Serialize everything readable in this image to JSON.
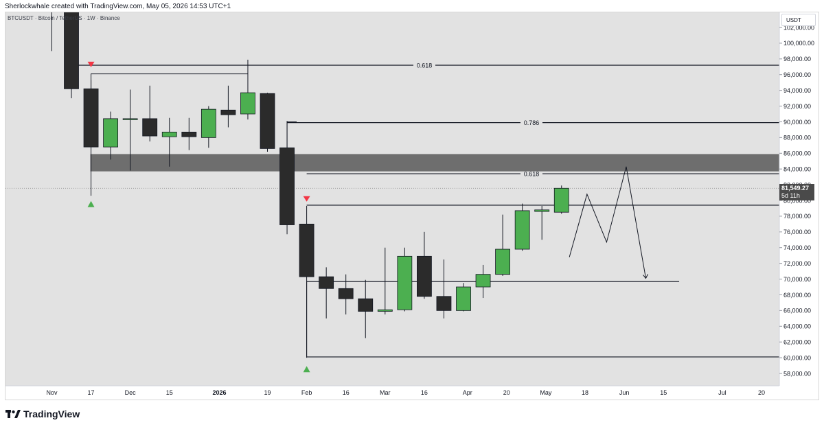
{
  "header": {
    "credit": "Sherlockwhale created with TradingView.com, May 05, 2026 14:53 UTC+1",
    "symbol_line": "BTCUSDT · Bitcoin / TetherUS · 1W · Binance"
  },
  "currency_button": {
    "label": "USDT"
  },
  "price_badge": {
    "price": "81,549.27",
    "countdown": "5d 11h"
  },
  "footer": {
    "brand": "TradingView",
    "logo_icon": "tradingview-logo-icon"
  },
  "colors": {
    "bull": "#4caf50",
    "bear": "#2b2b2b",
    "plot_bg": "#e2e2e2",
    "zone": "#6e6e6e",
    "marker_down": "#f23645",
    "marker_up": "#4caf50"
  },
  "chart_data": {
    "type": "candlestick",
    "ylim": [
      56500,
      103500
    ],
    "y_ticks": [
      58000,
      60000,
      62000,
      64000,
      66000,
      68000,
      70000,
      72000,
      74000,
      76000,
      78000,
      80000,
      82000,
      84000,
      86000,
      88000,
      90000,
      92000,
      94000,
      96000,
      98000,
      100000,
      102000
    ],
    "y_tick_labels": [
      "58,000.00",
      "60,000.00",
      "62,000.00",
      "64,000.00",
      "66,000.00",
      "68,000.00",
      "70,000.00",
      "72,000.00",
      "74,000.00",
      "76,000.00",
      "78,000.00",
      "80,000.00",
      "82,000.00",
      "84,000.00",
      "86,000.00",
      "88,000.00",
      "90,000.00",
      "92,000.00",
      "94,000.00",
      "96,000.00",
      "98,000.00",
      "100,000.00",
      "102,000.00"
    ],
    "x_labels": [
      {
        "label": "Nov",
        "week": -1.0,
        "bold": false
      },
      {
        "label": "17",
        "week": 1,
        "bold": false
      },
      {
        "label": "Dec",
        "week": 3,
        "bold": false
      },
      {
        "label": "15",
        "week": 5,
        "bold": false
      },
      {
        "label": "2026",
        "week": 7.55,
        "bold": true
      },
      {
        "label": "19",
        "week": 10,
        "bold": false
      },
      {
        "label": "Feb",
        "week": 12,
        "bold": false
      },
      {
        "label": "16",
        "week": 14,
        "bold": false
      },
      {
        "label": "Mar",
        "week": 16,
        "bold": false
      },
      {
        "label": "16",
        "week": 18,
        "bold": false
      },
      {
        "label": "Apr",
        "week": 20.2,
        "bold": false
      },
      {
        "label": "20",
        "week": 22.2,
        "bold": false
      },
      {
        "label": "May",
        "week": 24.2,
        "bold": false
      },
      {
        "label": "18",
        "week": 26.2,
        "bold": false
      },
      {
        "label": "Jun",
        "week": 28.2,
        "bold": false
      },
      {
        "label": "15",
        "week": 30.2,
        "bold": false
      },
      {
        "label": "Jul",
        "week": 33.2,
        "bold": false
      },
      {
        "label": "20",
        "week": 35.2,
        "bold": false
      }
    ],
    "candles": [
      {
        "w": -1,
        "o": 104200,
        "h": 104500,
        "l": 99000,
        "c": 104000
      },
      {
        "w": 0,
        "o": 106000,
        "h": 107000,
        "l": 93000,
        "c": 94200
      },
      {
        "w": 1,
        "o": 94200,
        "h": 95300,
        "l": 80600,
        "c": 86800
      },
      {
        "w": 2,
        "o": 86800,
        "h": 91300,
        "l": 85200,
        "c": 90400
      },
      {
        "w": 3,
        "o": 90400,
        "h": 94100,
        "l": 83800,
        "c": 90400
      },
      {
        "w": 4,
        "o": 90400,
        "h": 94600,
        "l": 87500,
        "c": 88200
      },
      {
        "w": 5,
        "o": 88100,
        "h": 90500,
        "l": 84300,
        "c": 88700
      },
      {
        "w": 6,
        "o": 88700,
        "h": 90500,
        "l": 86400,
        "c": 88100
      },
      {
        "w": 7,
        "o": 88000,
        "h": 92000,
        "l": 86700,
        "c": 91600
      },
      {
        "w": 8,
        "o": 91500,
        "h": 94600,
        "l": 89300,
        "c": 90900
      },
      {
        "w": 9,
        "o": 91000,
        "h": 97900,
        "l": 90300,
        "c": 93700
      },
      {
        "w": 10,
        "o": 93600,
        "h": 93700,
        "l": 86200,
        "c": 86600
      },
      {
        "w": 11,
        "o": 86700,
        "h": 90100,
        "l": 75700,
        "c": 76900
      },
      {
        "w": 12,
        "o": 77000,
        "h": 79300,
        "l": 60000,
        "c": 70300
      },
      {
        "w": 13,
        "o": 70300,
        "h": 71500,
        "l": 65000,
        "c": 68800
      },
      {
        "w": 14,
        "o": 68800,
        "h": 70600,
        "l": 65500,
        "c": 67500
      },
      {
        "w": 15,
        "o": 67500,
        "h": 69900,
        "l": 62500,
        "c": 65900
      },
      {
        "w": 16,
        "o": 65900,
        "h": 74000,
        "l": 65500,
        "c": 66100
      },
      {
        "w": 17,
        "o": 66100,
        "h": 74000,
        "l": 65900,
        "c": 72900
      },
      {
        "w": 18,
        "o": 72900,
        "h": 76000,
        "l": 67500,
        "c": 67800
      },
      {
        "w": 19,
        "o": 67800,
        "h": 72500,
        "l": 65000,
        "c": 66000
      },
      {
        "w": 20,
        "o": 66000,
        "h": 69500,
        "l": 65900,
        "c": 69000
      },
      {
        "w": 21,
        "o": 69000,
        "h": 71800,
        "l": 67600,
        "c": 70600
      },
      {
        "w": 22,
        "o": 70600,
        "h": 78200,
        "l": 70400,
        "c": 73800
      },
      {
        "w": 23,
        "o": 73800,
        "h": 79600,
        "l": 73600,
        "c": 78700
      },
      {
        "w": 24,
        "o": 78600,
        "h": 79300,
        "l": 75000,
        "c": 78800
      },
      {
        "w": 25,
        "o": 78500,
        "h": 81900,
        "l": 78300,
        "c": 81549.27
      }
    ],
    "fib_levels": [
      {
        "label": "0.618",
        "price": 97200,
        "from_week": 0,
        "to_week": 36
      },
      {
        "label": "0.786",
        "price": 89900,
        "from_week": 11,
        "to_week": 36
      },
      {
        "label": "0.618",
        "price": 83400,
        "from_week": 12,
        "to_week": 36
      }
    ],
    "levels": [
      {
        "price": 79400,
        "from_week": 12,
        "to_week": 36
      },
      {
        "price": 69700,
        "from_week": 12,
        "to_week": 31
      },
      {
        "price": 60100,
        "from_week": 12,
        "to_week": 36
      }
    ],
    "zone": {
      "from": 83700,
      "to": 85900,
      "from_week": 1,
      "to_week": 36
    },
    "brackets": [
      {
        "top": 96100,
        "bottom": 86800,
        "from_week": 1,
        "to_week": 9
      },
      {
        "top": 90000,
        "bottom": 86600,
        "from_week": 11,
        "to_week": 11
      }
    ],
    "projection": [
      {
        "week": 25.4,
        "price": 72800
      },
      {
        "week": 26.3,
        "price": 80800
      },
      {
        "week": 27.3,
        "price": 74700
      },
      {
        "week": 28.3,
        "price": 84300
      },
      {
        "week": 29.3,
        "price": 70100
      }
    ],
    "markers": [
      {
        "type": "down",
        "week": 1,
        "price": 97300
      },
      {
        "type": "up",
        "week": 1,
        "price": 79500
      },
      {
        "type": "down",
        "week": 12,
        "price": 80200
      },
      {
        "type": "up",
        "week": 12,
        "price": 58500
      }
    ],
    "current_price": 81549.27
  }
}
